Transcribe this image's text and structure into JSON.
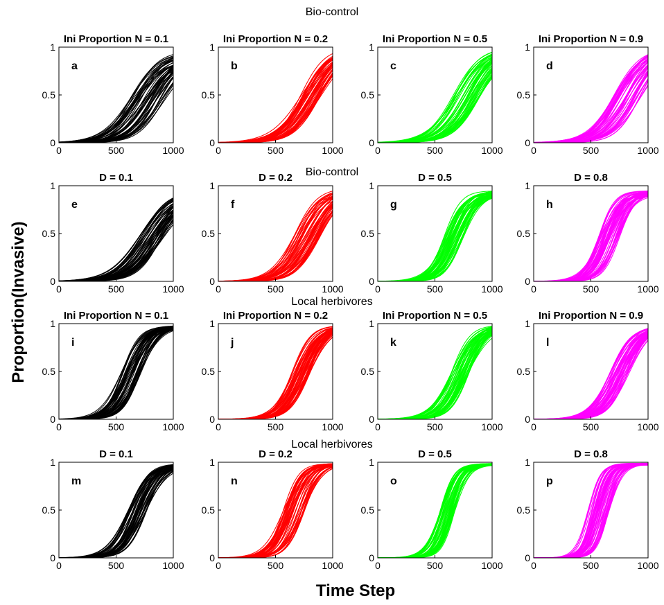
{
  "figure": {
    "row_titles": [
      "Bio-control",
      "Bio-control",
      "Local herbivores",
      "Local herbivores"
    ],
    "ylabel": "Proportion(Invasive)",
    "xlabel": "Time Step"
  },
  "colors": {
    "black": "#000000",
    "red": "#ff0000",
    "green": "#00ff00",
    "magenta": "#ff00ff"
  },
  "chart_data": [
    {
      "type": "line",
      "title": "Ini Proportion N = 0.1",
      "panel_label": "a",
      "row": 0,
      "col": 0,
      "color": "black",
      "xlim": [
        0,
        1000
      ],
      "ylim": [
        0,
        1
      ],
      "xticks": [
        0,
        500,
        1000
      ],
      "yticks": [
        0,
        0.5,
        1
      ],
      "xtick_labels": [
        "0",
        "500",
        "1000"
      ],
      "ytick_labels": [
        "0",
        "0.5",
        "1"
      ],
      "series_count": 50,
      "curve_family": {
        "midpoint_range": [
          620,
          920
        ],
        "steepness": 0.0085,
        "max_range": [
          0.85,
          0.98
        ]
      }
    },
    {
      "type": "line",
      "title": "Ini Proportion N = 0.2",
      "panel_label": "b",
      "row": 0,
      "col": 1,
      "color": "red",
      "xlim": [
        0,
        1000
      ],
      "ylim": [
        0,
        1
      ],
      "xticks": [
        0,
        500,
        1000
      ],
      "yticks": [
        0,
        0.5,
        1
      ],
      "xtick_labels": [
        "0",
        "500",
        "1000"
      ],
      "ytick_labels": [
        "0",
        "0.5",
        "1"
      ],
      "series_count": 50,
      "curve_family": {
        "midpoint_range": [
          720,
          900
        ],
        "steepness": 0.0085,
        "max_range": [
          0.95,
          1.0
        ]
      }
    },
    {
      "type": "line",
      "title": "Ini Proportion N = 0.5",
      "panel_label": "c",
      "row": 0,
      "col": 2,
      "color": "green",
      "xlim": [
        0,
        1000
      ],
      "ylim": [
        0,
        1
      ],
      "xticks": [
        0,
        500,
        1000
      ],
      "yticks": [
        0,
        0.5,
        1
      ],
      "xtick_labels": [
        "0",
        "500",
        "1000"
      ],
      "ytick_labels": [
        "0",
        "0.5",
        "1"
      ],
      "series_count": 50,
      "curve_family": {
        "midpoint_range": [
          660,
          900
        ],
        "steepness": 0.0085,
        "max_range": [
          0.95,
          1.0
        ]
      }
    },
    {
      "type": "line",
      "title": "Ini Proportion N = 0.9",
      "panel_label": "d",
      "row": 0,
      "col": 3,
      "color": "magenta",
      "xlim": [
        0,
        1000
      ],
      "ylim": [
        0,
        1
      ],
      "xticks": [
        0,
        500,
        1000
      ],
      "yticks": [
        0,
        0.5,
        1
      ],
      "xtick_labels": [
        "0",
        "500",
        "1000"
      ],
      "ytick_labels": [
        "0",
        "0.5",
        "1"
      ],
      "series_count": 50,
      "curve_family": {
        "midpoint_range": [
          700,
          950
        ],
        "steepness": 0.0085,
        "max_range": [
          0.95,
          1.0
        ]
      }
    },
    {
      "type": "line",
      "title": "D = 0.1",
      "panel_label": "e",
      "row": 1,
      "col": 0,
      "color": "black",
      "xlim": [
        0,
        1000
      ],
      "ylim": [
        0,
        1
      ],
      "xticks": [
        0,
        500,
        1000
      ],
      "yticks": [
        0,
        0.5,
        1
      ],
      "xtick_labels": [
        "0",
        "500",
        "1000"
      ],
      "ytick_labels": [
        "0",
        "0.5",
        "1"
      ],
      "series_count": 50,
      "curve_family": {
        "midpoint_range": [
          700,
          920
        ],
        "steepness": 0.0085,
        "max_range": [
          0.85,
          0.98
        ]
      }
    },
    {
      "type": "line",
      "title": "D = 0.2",
      "panel_label": "f",
      "row": 1,
      "col": 1,
      "color": "red",
      "xlim": [
        0,
        1000
      ],
      "ylim": [
        0,
        1
      ],
      "xticks": [
        0,
        500,
        1000
      ],
      "yticks": [
        0,
        0.5,
        1
      ],
      "xtick_labels": [
        "0",
        "500",
        "1000"
      ],
      "ytick_labels": [
        "0",
        "0.5",
        "1"
      ],
      "series_count": 50,
      "curve_family": {
        "midpoint_range": [
          660,
          900
        ],
        "steepness": 0.0095,
        "max_range": [
          0.9,
          0.98
        ]
      }
    },
    {
      "type": "line",
      "title": "D = 0.5",
      "panel_label": "g",
      "row": 1,
      "col": 2,
      "color": "green",
      "xlim": [
        0,
        1000
      ],
      "ylim": [
        0,
        1
      ],
      "xticks": [
        0,
        500,
        1000
      ],
      "yticks": [
        0,
        0.5,
        1
      ],
      "xtick_labels": [
        "0",
        "500",
        "1000"
      ],
      "ytick_labels": [
        "0",
        "0.5",
        "1"
      ],
      "series_count": 50,
      "curve_family": {
        "midpoint_range": [
          580,
          760
        ],
        "steepness": 0.012,
        "max_range": [
          0.9,
          0.95
        ]
      }
    },
    {
      "type": "line",
      "title": "D = 0.8",
      "panel_label": "h",
      "row": 1,
      "col": 3,
      "color": "magenta",
      "xlim": [
        0,
        1000
      ],
      "ylim": [
        0,
        1
      ],
      "xticks": [
        0,
        500,
        1000
      ],
      "yticks": [
        0,
        0.5,
        1
      ],
      "xtick_labels": [
        "0",
        "500",
        "1000"
      ],
      "ytick_labels": [
        "0",
        "0.5",
        "1"
      ],
      "series_count": 50,
      "curve_family": {
        "midpoint_range": [
          560,
          760
        ],
        "steepness": 0.013,
        "max_range": [
          0.9,
          0.95
        ]
      }
    },
    {
      "type": "line",
      "title": "Ini Proportion N = 0.1",
      "panel_label": "i",
      "row": 2,
      "col": 0,
      "color": "black",
      "xlim": [
        0,
        1000
      ],
      "ylim": [
        0,
        1
      ],
      "xticks": [
        0,
        500,
        1000
      ],
      "yticks": [
        0,
        0.5,
        1
      ],
      "xtick_labels": [
        "0",
        "500",
        "1000"
      ],
      "ytick_labels": [
        "0",
        "0.5",
        "1"
      ],
      "series_count": 50,
      "curve_family": {
        "midpoint_range": [
          540,
          720
        ],
        "steepness": 0.012,
        "max_range": [
          0.96,
          0.99
        ]
      }
    },
    {
      "type": "line",
      "title": "Ini Proportion N = 0.2",
      "panel_label": "j",
      "row": 2,
      "col": 1,
      "color": "red",
      "xlim": [
        0,
        1000
      ],
      "ylim": [
        0,
        1
      ],
      "xticks": [
        0,
        500,
        1000
      ],
      "yticks": [
        0,
        0.5,
        1
      ],
      "xtick_labels": [
        "0",
        "500",
        "1000"
      ],
      "ytick_labels": [
        "0",
        "0.5",
        "1"
      ],
      "series_count": 50,
      "curve_family": {
        "midpoint_range": [
          640,
          800
        ],
        "steepness": 0.011,
        "max_range": [
          0.96,
          0.99
        ]
      }
    },
    {
      "type": "line",
      "title": "Ini Proportion N = 0.5",
      "panel_label": "k",
      "row": 2,
      "col": 2,
      "color": "green",
      "xlim": [
        0,
        1000
      ],
      "ylim": [
        0,
        1
      ],
      "xticks": [
        0,
        500,
        1000
      ],
      "yticks": [
        0,
        0.5,
        1
      ],
      "xtick_labels": [
        "0",
        "500",
        "1000"
      ],
      "ytick_labels": [
        "0",
        "0.5",
        "1"
      ],
      "series_count": 50,
      "curve_family": {
        "midpoint_range": [
          640,
          800
        ],
        "steepness": 0.011,
        "max_range": [
          0.96,
          0.99
        ]
      }
    },
    {
      "type": "line",
      "title": "Ini Proportion N = 0.9",
      "panel_label": "l",
      "row": 2,
      "col": 3,
      "color": "magenta",
      "xlim": [
        0,
        1000
      ],
      "ylim": [
        0,
        1
      ],
      "xticks": [
        0,
        500,
        1000
      ],
      "yticks": [
        0,
        0.5,
        1
      ],
      "xtick_labels": [
        "0",
        "500",
        "1000"
      ],
      "ytick_labels": [
        "0",
        "0.5",
        "1"
      ],
      "series_count": 50,
      "curve_family": {
        "midpoint_range": [
          660,
          840
        ],
        "steepness": 0.0105,
        "max_range": [
          0.96,
          0.99
        ]
      }
    },
    {
      "type": "line",
      "title": "D = 0.1",
      "panel_label": "m",
      "row": 3,
      "col": 0,
      "color": "black",
      "xlim": [
        0,
        1000
      ],
      "ylim": [
        0,
        1
      ],
      "xticks": [
        0,
        500,
        1000
      ],
      "yticks": [
        0,
        0.5,
        1
      ],
      "xtick_labels": [
        "0",
        "500",
        "1000"
      ],
      "ytick_labels": [
        "0",
        "0.5",
        "1"
      ],
      "series_count": 50,
      "curve_family": {
        "midpoint_range": [
          600,
          780
        ],
        "steepness": 0.0115,
        "max_range": [
          0.96,
          0.99
        ]
      }
    },
    {
      "type": "line",
      "title": "D = 0.2",
      "panel_label": "n",
      "row": 3,
      "col": 1,
      "color": "red",
      "xlim": [
        0,
        1000
      ],
      "ylim": [
        0,
        1
      ],
      "xticks": [
        0,
        500,
        1000
      ],
      "yticks": [
        0,
        0.5,
        1
      ],
      "xtick_labels": [
        "0",
        "500",
        "1000"
      ],
      "ytick_labels": [
        "0",
        "0.5",
        "1"
      ],
      "series_count": 50,
      "curve_family": {
        "midpoint_range": [
          560,
          760
        ],
        "steepness": 0.013,
        "max_range": [
          0.97,
          0.99
        ]
      }
    },
    {
      "type": "line",
      "title": "D = 0.5",
      "panel_label": "o",
      "row": 3,
      "col": 2,
      "color": "green",
      "xlim": [
        0,
        1000
      ],
      "ylim": [
        0,
        1
      ],
      "xticks": [
        0,
        500,
        1000
      ],
      "yticks": [
        0,
        0.5,
        1
      ],
      "xtick_labels": [
        "0",
        "500",
        "1000"
      ],
      "ytick_labels": [
        "0",
        "0.5",
        "1"
      ],
      "series_count": 50,
      "curve_family": {
        "midpoint_range": [
          540,
          680
        ],
        "steepness": 0.016,
        "max_range": [
          0.97,
          0.99
        ]
      }
    },
    {
      "type": "line",
      "title": "D = 0.8",
      "panel_label": "p",
      "row": 3,
      "col": 3,
      "color": "magenta",
      "xlim": [
        0,
        1000
      ],
      "ylim": [
        0,
        1
      ],
      "xticks": [
        0,
        500,
        1000
      ],
      "yticks": [
        0,
        0.5,
        1
      ],
      "xtick_labels": [
        "0",
        "500",
        "1000"
      ],
      "ytick_labels": [
        "0",
        "0.5",
        "1"
      ],
      "series_count": 50,
      "curve_family": {
        "midpoint_range": [
          470,
          660
        ],
        "steepness": 0.018,
        "max_range": [
          0.97,
          0.99
        ]
      }
    }
  ]
}
